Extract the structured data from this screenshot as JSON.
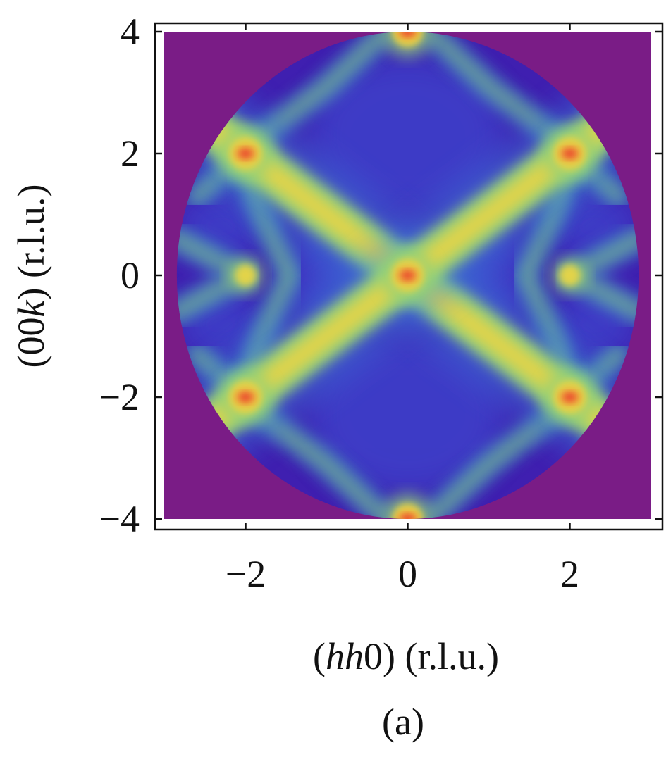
{
  "chart_data": {
    "type": "heatmap",
    "title": "",
    "panel_label": "(a)",
    "xlabel": {
      "italic": "hh",
      "rest": "0) (r.l.u.)"
    },
    "ylabel": {
      "prefix": "(00",
      "italic": "k",
      "rest": ") (r.l.u.)"
    },
    "xlim": [
      -3.1,
      3.1
    ],
    "ylim": [
      -4.1,
      4.1
    ],
    "x_ticks": [
      -2,
      0,
      2
    ],
    "x_tick_labels": [
      "−2",
      "0",
      "2"
    ],
    "y_ticks": [
      -4,
      -2,
      0,
      2,
      4
    ],
    "y_tick_labels": [
      "−4",
      "−2",
      "0",
      "2",
      "4"
    ],
    "grid": false,
    "background_color": "#7a1c86",
    "data_region": {
      "shape": "ellipse",
      "center": [
        0,
        0
      ],
      "semi_axis_x": 2.85,
      "semi_axis_y": 4.0
    },
    "colormap": [
      "#3f1fb0",
      "#3c52d8",
      "#3b86e0",
      "#49b9c3",
      "#8fd27a",
      "#e2d34a",
      "#f0a23b",
      "#e8432d"
    ],
    "features": [
      {
        "kind": "diagonal-line",
        "x1": -2.7,
        "y1": 2.7,
        "x2": 2.7,
        "y2": -2.7,
        "intensity": 0.8
      },
      {
        "kind": "diagonal-line",
        "x1": -2.7,
        "y1": -2.7,
        "x2": 2.7,
        "y2": 2.7,
        "intensity": 0.8
      },
      {
        "kind": "peak",
        "x": 0,
        "y": 0,
        "intensity": 1.0
      },
      {
        "kind": "peak",
        "x": 2,
        "y": 2,
        "intensity": 1.0
      },
      {
        "kind": "peak",
        "x": -2,
        "y": 2,
        "intensity": 1.0
      },
      {
        "kind": "peak",
        "x": 2,
        "y": -2,
        "intensity": 1.0
      },
      {
        "kind": "peak",
        "x": -2,
        "y": -2,
        "intensity": 1.0
      },
      {
        "kind": "peak",
        "x": 0,
        "y": 4,
        "intensity": 0.9
      },
      {
        "kind": "peak",
        "x": 0,
        "y": -4,
        "intensity": 0.9
      },
      {
        "kind": "peak",
        "x": 2,
        "y": 0,
        "intensity": 0.55
      },
      {
        "kind": "peak",
        "x": -2,
        "y": 0,
        "intensity": 0.55
      }
    ]
  }
}
